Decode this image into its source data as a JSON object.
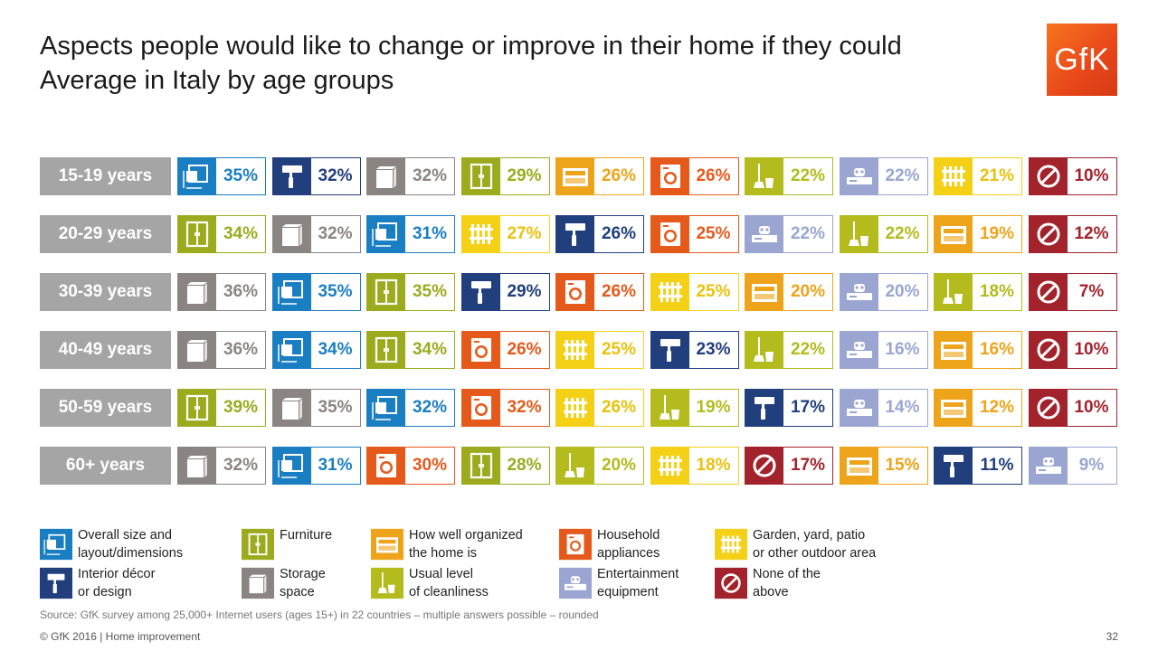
{
  "header": {
    "title_line1": "Aspects people would like to change or improve in their home if they could",
    "title_line2": "Average in Italy by age groups",
    "logo_text": "GfK"
  },
  "categories_meta": {
    "size": {
      "label": "Overall size and\nlayout/dimensions",
      "color": "#1a7ec2",
      "icon": "layout-icon"
    },
    "furn": {
      "label": "Furniture",
      "color": "#9bab1d",
      "icon": "wardrobe-icon"
    },
    "org": {
      "label": "How well organized\nthe home is",
      "color": "#eea41a",
      "icon": "drawer-icon"
    },
    "appl": {
      "label": "Household\nappliances",
      "color": "#e55a1b",
      "icon": "washing-machine-icon"
    },
    "garden": {
      "label": "Garden, yard, patio\nor other outdoor area",
      "color": "#f4d117",
      "icon": "fence-icon"
    },
    "decor": {
      "label": "Interior décor\nor design",
      "color": "#213e7d",
      "icon": "paint-roller-icon"
    },
    "storage": {
      "label": "Storage\nspace",
      "color": "#8a8482",
      "icon": "box-icon"
    },
    "clean": {
      "label": "Usual level\nof cleanliness",
      "color": "#b3bb1d",
      "icon": "broom-icon"
    },
    "ent": {
      "label": "Entertainment\nequipment",
      "color": "#9aa6d1",
      "icon": "tv-equipment-icon"
    },
    "none": {
      "label": "None of the\nabove",
      "color": "#a2232c",
      "icon": "none-icon"
    }
  },
  "legend_order": [
    "size",
    "furn",
    "org",
    "appl",
    "garden",
    "decor",
    "storage",
    "clean",
    "ent",
    "none"
  ],
  "chart_data": {
    "type": "table",
    "title": "Aspects people would like to change or improve in their home if they could",
    "subtitle": "Average in Italy by age groups",
    "rows": [
      {
        "age": "15-19 years",
        "items": [
          [
            "size",
            35
          ],
          [
            "decor",
            32
          ],
          [
            "storage",
            32
          ],
          [
            "furn",
            29
          ],
          [
            "org",
            26
          ],
          [
            "appl",
            26
          ],
          [
            "clean",
            22
          ],
          [
            "ent",
            22
          ],
          [
            "garden",
            21
          ],
          [
            "none",
            10
          ]
        ]
      },
      {
        "age": "20-29 years",
        "items": [
          [
            "furn",
            34
          ],
          [
            "storage",
            32
          ],
          [
            "size",
            31
          ],
          [
            "garden",
            27
          ],
          [
            "decor",
            26
          ],
          [
            "appl",
            25
          ],
          [
            "ent",
            22
          ],
          [
            "clean",
            22
          ],
          [
            "org",
            19
          ],
          [
            "none",
            12
          ]
        ]
      },
      {
        "age": "30-39 years",
        "items": [
          [
            "storage",
            36
          ],
          [
            "size",
            35
          ],
          [
            "furn",
            35
          ],
          [
            "decor",
            29
          ],
          [
            "appl",
            26
          ],
          [
            "garden",
            25
          ],
          [
            "org",
            20
          ],
          [
            "ent",
            20
          ],
          [
            "clean",
            18
          ],
          [
            "none",
            7
          ]
        ]
      },
      {
        "age": "40-49 years",
        "items": [
          [
            "storage",
            36
          ],
          [
            "size",
            34
          ],
          [
            "furn",
            34
          ],
          [
            "appl",
            26
          ],
          [
            "garden",
            25
          ],
          [
            "decor",
            23
          ],
          [
            "clean",
            22
          ],
          [
            "ent",
            16
          ],
          [
            "org",
            16
          ],
          [
            "none",
            10
          ]
        ]
      },
      {
        "age": "50-59 years",
        "items": [
          [
            "furn",
            39
          ],
          [
            "storage",
            35
          ],
          [
            "size",
            32
          ],
          [
            "appl",
            32
          ],
          [
            "garden",
            26
          ],
          [
            "clean",
            19
          ],
          [
            "decor",
            17
          ],
          [
            "ent",
            14
          ],
          [
            "org",
            12
          ],
          [
            "none",
            10
          ]
        ]
      },
      {
        "age": "60+ years",
        "items": [
          [
            "storage",
            32
          ],
          [
            "size",
            31
          ],
          [
            "appl",
            30
          ],
          [
            "furn",
            28
          ],
          [
            "clean",
            20
          ],
          [
            "garden",
            18
          ],
          [
            "none",
            17
          ],
          [
            "org",
            15
          ],
          [
            "decor",
            11
          ],
          [
            "ent",
            9
          ]
        ]
      }
    ],
    "value_suffix": "%"
  },
  "footer": {
    "source": "Source: GfK survey among 25,000+ Internet users (ages 15+) in 22 countries – multiple answers possible – rounded",
    "copyright": "© GfK 2016 | Home improvement",
    "page": "32"
  }
}
